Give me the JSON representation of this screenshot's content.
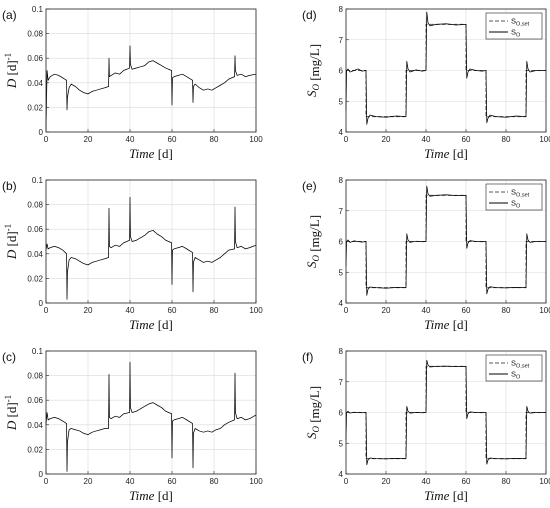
{
  "chart_data": [
    {
      "type": "line",
      "panel_label": "(a)",
      "xlabel": "Time [d]",
      "ylabel": "D [d]^-1",
      "xlim": [
        0,
        100
      ],
      "ylim": [
        0,
        0.1
      ],
      "xticks": [
        "0",
        "20",
        "40",
        "60",
        "80",
        "100"
      ],
      "yticks": [
        "0",
        "0.02",
        "0.04",
        "0.06",
        "0.08",
        "0.1"
      ],
      "grid": true,
      "series": [
        {
          "style": "solid",
          "x": [
            0,
            0.5,
            1,
            2,
            4,
            6,
            8,
            9.8,
            10,
            10.2,
            11,
            12,
            14,
            16,
            18,
            20,
            22,
            24,
            26,
            28,
            29.8,
            30,
            30.2,
            31,
            33,
            35,
            37,
            39.8,
            40,
            40.2,
            41,
            43,
            45,
            47,
            49,
            51,
            53,
            55,
            57,
            59.8,
            60,
            60.2,
            61,
            63,
            65,
            67,
            69.8,
            70,
            70.2,
            71,
            73,
            75,
            77,
            79,
            81,
            83,
            85,
            87,
            89.8,
            90,
            90.2,
            91,
            93,
            95,
            97,
            100
          ],
          "y": [
            0.002,
            0.05,
            0.042,
            0.045,
            0.047,
            0.046,
            0.044,
            0.042,
            0.018,
            0.028,
            0.036,
            0.039,
            0.037,
            0.034,
            0.032,
            0.031,
            0.033,
            0.034,
            0.035,
            0.036,
            0.037,
            0.06,
            0.045,
            0.046,
            0.048,
            0.047,
            0.05,
            0.052,
            0.07,
            0.055,
            0.051,
            0.052,
            0.053,
            0.054,
            0.057,
            0.058,
            0.056,
            0.054,
            0.052,
            0.05,
            0.022,
            0.044,
            0.045,
            0.046,
            0.047,
            0.045,
            0.042,
            0.024,
            0.037,
            0.039,
            0.036,
            0.034,
            0.035,
            0.034,
            0.036,
            0.038,
            0.04,
            0.043,
            0.045,
            0.062,
            0.05,
            0.046,
            0.047,
            0.045,
            0.046,
            0.047
          ]
        }
      ]
    },
    {
      "type": "line",
      "panel_label": "(b)",
      "xlabel": "Time [d]",
      "ylabel": "D [d]^-1",
      "xlim": [
        0,
        100
      ],
      "ylim": [
        0,
        0.1
      ],
      "xticks": [
        "0",
        "20",
        "40",
        "60",
        "80",
        "100"
      ],
      "yticks": [
        "0",
        "0.02",
        "0.04",
        "0.06",
        "0.08",
        "0.1"
      ],
      "grid": true,
      "series": [
        {
          "style": "solid",
          "x": [
            0,
            0.5,
            1,
            2,
            4,
            6,
            8,
            9.8,
            10,
            10.2,
            11,
            12,
            14,
            16,
            18,
            20,
            22,
            24,
            26,
            28,
            29.8,
            30,
            30.2,
            31,
            33,
            35,
            37,
            39.8,
            40,
            40.2,
            41,
            43,
            45,
            47,
            49,
            51,
            53,
            55,
            57,
            59.8,
            60,
            60.2,
            61,
            63,
            65,
            67,
            69.8,
            70,
            70.2,
            71,
            73,
            75,
            77,
            79,
            81,
            83,
            85,
            87,
            89.8,
            90,
            90.2,
            91,
            93,
            95,
            97,
            100
          ],
          "y": [
            0.043,
            0.048,
            0.044,
            0.045,
            0.046,
            0.045,
            0.043,
            0.04,
            0.003,
            0.025,
            0.035,
            0.037,
            0.036,
            0.034,
            0.032,
            0.031,
            0.033,
            0.034,
            0.035,
            0.036,
            0.037,
            0.077,
            0.046,
            0.045,
            0.047,
            0.046,
            0.049,
            0.051,
            0.086,
            0.054,
            0.05,
            0.051,
            0.053,
            0.055,
            0.058,
            0.059,
            0.056,
            0.054,
            0.051,
            0.049,
            0.015,
            0.043,
            0.044,
            0.045,
            0.046,
            0.044,
            0.041,
            0.009,
            0.033,
            0.037,
            0.035,
            0.033,
            0.034,
            0.033,
            0.035,
            0.037,
            0.04,
            0.043,
            0.044,
            0.078,
            0.05,
            0.045,
            0.046,
            0.044,
            0.045,
            0.047
          ]
        }
      ]
    },
    {
      "type": "line",
      "panel_label": "(c)",
      "xlabel": "Time [d]",
      "ylabel": "D [d]^-1",
      "xlim": [
        0,
        100
      ],
      "ylim": [
        0,
        0.1
      ],
      "xticks": [
        "0",
        "20",
        "40",
        "60",
        "80",
        "100"
      ],
      "yticks": [
        "0",
        "0.02",
        "0.04",
        "0.06",
        "0.08",
        "0.1"
      ],
      "grid": true,
      "series": [
        {
          "style": "solid",
          "x": [
            0,
            0.5,
            1,
            2,
            4,
            6,
            8,
            9.8,
            10,
            10.2,
            11,
            12,
            14,
            16,
            18,
            20,
            22,
            24,
            26,
            28,
            29.8,
            30,
            30.2,
            31,
            33,
            35,
            37,
            39.8,
            40,
            40.2,
            41,
            43,
            45,
            47,
            49,
            51,
            53,
            55,
            57,
            59.8,
            60,
            60.2,
            61,
            63,
            65,
            67,
            69.8,
            70,
            70.2,
            71,
            73,
            75,
            77,
            79,
            81,
            83,
            85,
            87,
            89.8,
            90,
            90.2,
            91,
            93,
            95,
            97,
            100
          ],
          "y": [
            0.04,
            0.05,
            0.044,
            0.045,
            0.046,
            0.045,
            0.043,
            0.041,
            0.002,
            0.026,
            0.036,
            0.037,
            0.036,
            0.035,
            0.033,
            0.032,
            0.034,
            0.035,
            0.036,
            0.037,
            0.037,
            0.081,
            0.046,
            0.045,
            0.047,
            0.046,
            0.049,
            0.05,
            0.091,
            0.054,
            0.05,
            0.051,
            0.053,
            0.055,
            0.057,
            0.058,
            0.056,
            0.054,
            0.051,
            0.049,
            0.013,
            0.043,
            0.044,
            0.045,
            0.046,
            0.044,
            0.041,
            0.005,
            0.033,
            0.037,
            0.035,
            0.034,
            0.035,
            0.034,
            0.036,
            0.037,
            0.04,
            0.042,
            0.044,
            0.082,
            0.05,
            0.045,
            0.046,
            0.044,
            0.045,
            0.048
          ]
        }
      ]
    },
    {
      "type": "line",
      "panel_label": "(d)",
      "xlabel": "Time [d]",
      "ylabel": "S_O [mg/L]",
      "xlim": [
        0,
        100
      ],
      "ylim": [
        4,
        8
      ],
      "xticks": [
        "0",
        "20",
        "40",
        "60",
        "80",
        "100"
      ],
      "yticks": [
        "4",
        "5",
        "6",
        "7",
        "8"
      ],
      "grid": true,
      "legend": [
        "S_O,set",
        "S_O"
      ],
      "legend_position": "top-right",
      "series": [
        {
          "name": "S_O,set",
          "style": "dashed",
          "x": [
            0,
            10,
            10,
            30,
            30,
            40,
            40,
            60,
            60,
            70,
            70,
            90,
            90,
            100
          ],
          "y": [
            6,
            6,
            4.5,
            4.5,
            6,
            6,
            7.5,
            7.5,
            6,
            6,
            4.5,
            4.5,
            6,
            6
          ]
        },
        {
          "name": "S_O",
          "style": "solid",
          "x": [
            0,
            0.3,
            1,
            2,
            4,
            6,
            8,
            10,
            10.4,
            11,
            12,
            15,
            20,
            25,
            30,
            30.4,
            31,
            32,
            35,
            38,
            40,
            40.4,
            41,
            42,
            45,
            50,
            55,
            60,
            60.4,
            61,
            62,
            65,
            68,
            70,
            70.4,
            71,
            72,
            75,
            80,
            85,
            90,
            90.4,
            91,
            92,
            95,
            100
          ],
          "y": [
            4.7,
            6.0,
            6.05,
            5.95,
            6.0,
            6.05,
            5.98,
            6.0,
            4.25,
            4.45,
            4.55,
            4.5,
            4.48,
            4.52,
            4.5,
            6.3,
            6.05,
            5.95,
            6.02,
            5.98,
            6.0,
            7.9,
            7.55,
            7.45,
            7.5,
            7.52,
            7.48,
            7.5,
            5.75,
            5.95,
            6.05,
            6.0,
            5.98,
            6.0,
            4.3,
            4.45,
            4.55,
            4.5,
            4.48,
            4.52,
            4.5,
            6.3,
            6.05,
            5.95,
            6.0,
            6.0
          ]
        }
      ]
    },
    {
      "type": "line",
      "panel_label": "(e)",
      "xlabel": "Time [d]",
      "ylabel": "S_O [mg/L]",
      "xlim": [
        0,
        100
      ],
      "ylim": [
        4,
        8
      ],
      "xticks": [
        "0",
        "20",
        "40",
        "60",
        "80",
        "100"
      ],
      "yticks": [
        "4",
        "5",
        "6",
        "7",
        "8"
      ],
      "grid": true,
      "legend": [
        "S_O,set",
        "S_O"
      ],
      "legend_position": "top-right",
      "series": [
        {
          "name": "S_O,set",
          "style": "dashed",
          "x": [
            0,
            10,
            10,
            30,
            30,
            40,
            40,
            60,
            60,
            70,
            70,
            90,
            90,
            100
          ],
          "y": [
            6,
            6,
            4.5,
            4.5,
            6,
            6,
            7.5,
            7.5,
            6,
            6,
            4.5,
            4.5,
            6,
            6
          ]
        },
        {
          "name": "S_O",
          "style": "solid",
          "x": [
            0,
            0.3,
            1,
            2,
            4,
            6,
            8,
            10,
            10.4,
            11,
            12,
            15,
            20,
            25,
            30,
            30.4,
            31,
            32,
            35,
            38,
            40,
            40.4,
            41,
            42,
            45,
            50,
            55,
            60,
            60.4,
            61,
            62,
            65,
            68,
            70,
            70.4,
            71,
            72,
            75,
            80,
            85,
            90,
            90.4,
            91,
            92,
            95,
            100
          ],
          "y": [
            5.2,
            6.0,
            6.05,
            5.97,
            6.02,
            6.0,
            5.98,
            6.0,
            4.25,
            4.45,
            4.52,
            4.5,
            4.48,
            4.51,
            4.5,
            6.25,
            6.05,
            5.97,
            6.01,
            5.99,
            6.0,
            7.8,
            7.55,
            7.47,
            7.5,
            7.52,
            7.49,
            7.5,
            5.78,
            5.95,
            6.03,
            6.0,
            5.99,
            6.0,
            4.3,
            4.45,
            4.53,
            4.5,
            4.49,
            4.51,
            4.5,
            6.25,
            6.05,
            5.97,
            6.0,
            6.0
          ]
        }
      ]
    },
    {
      "type": "line",
      "panel_label": "(f)",
      "xlabel": "Time [d]",
      "ylabel": "S_O [mg/L]",
      "xlim": [
        0,
        100
      ],
      "ylim": [
        4,
        8
      ],
      "xticks": [
        "0",
        "20",
        "40",
        "60",
        "80",
        "100"
      ],
      "yticks": [
        "4",
        "5",
        "6",
        "7",
        "8"
      ],
      "grid": true,
      "legend": [
        "S_O,set",
        "S_O"
      ],
      "legend_position": "top-right",
      "series": [
        {
          "name": "S_O,set",
          "style": "dashed",
          "x": [
            0,
            10,
            10,
            30,
            30,
            40,
            40,
            60,
            60,
            70,
            70,
            90,
            90,
            100
          ],
          "y": [
            6,
            6,
            4.5,
            4.5,
            6,
            6,
            7.5,
            7.5,
            6,
            6,
            4.5,
            4.5,
            6,
            6
          ]
        },
        {
          "name": "S_O",
          "style": "solid",
          "x": [
            0,
            0.3,
            1,
            2,
            4,
            6,
            8,
            10,
            10.4,
            11,
            12,
            15,
            20,
            25,
            30,
            30.4,
            31,
            32,
            35,
            38,
            40,
            40.4,
            41,
            42,
            45,
            50,
            55,
            60,
            60.4,
            61,
            62,
            65,
            68,
            70,
            70.4,
            71,
            72,
            75,
            80,
            85,
            90,
            90.4,
            91,
            92,
            95,
            100
          ],
          "y": [
            5.1,
            6.0,
            6.04,
            5.98,
            6.01,
            6.0,
            5.99,
            6.0,
            4.3,
            4.46,
            4.52,
            4.5,
            4.49,
            4.51,
            4.5,
            6.2,
            6.04,
            5.98,
            6.0,
            5.99,
            6.0,
            7.7,
            7.55,
            7.48,
            7.5,
            7.51,
            7.49,
            7.5,
            5.8,
            5.96,
            6.02,
            6.0,
            5.99,
            6.0,
            4.32,
            4.46,
            4.52,
            4.5,
            4.49,
            4.51,
            4.5,
            6.2,
            6.04,
            5.98,
            6.0,
            6.0
          ]
        }
      ]
    }
  ]
}
